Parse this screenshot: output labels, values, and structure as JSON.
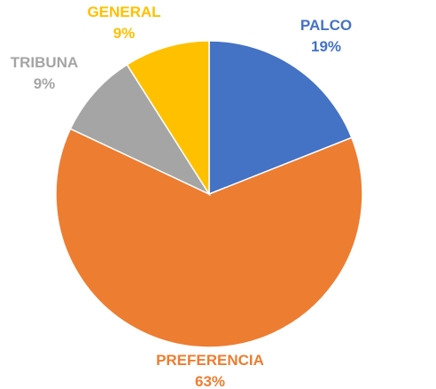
{
  "chart_data": {
    "type": "pie",
    "title": "",
    "legend": "none",
    "slices": [
      {
        "label": "PALCO",
        "percent_label": "19%",
        "value": 19,
        "color": "#4472C4"
      },
      {
        "label": "PREFERENCIA",
        "percent_label": "63%",
        "value": 63,
        "color": "#ED7D31"
      },
      {
        "label": "TRIBUNA",
        "percent_label": "9%",
        "value": 9,
        "color": "#A5A5A5"
      },
      {
        "label": "GENERAL",
        "percent_label": "9%",
        "value": 9,
        "color": "#FFC000"
      }
    ]
  }
}
